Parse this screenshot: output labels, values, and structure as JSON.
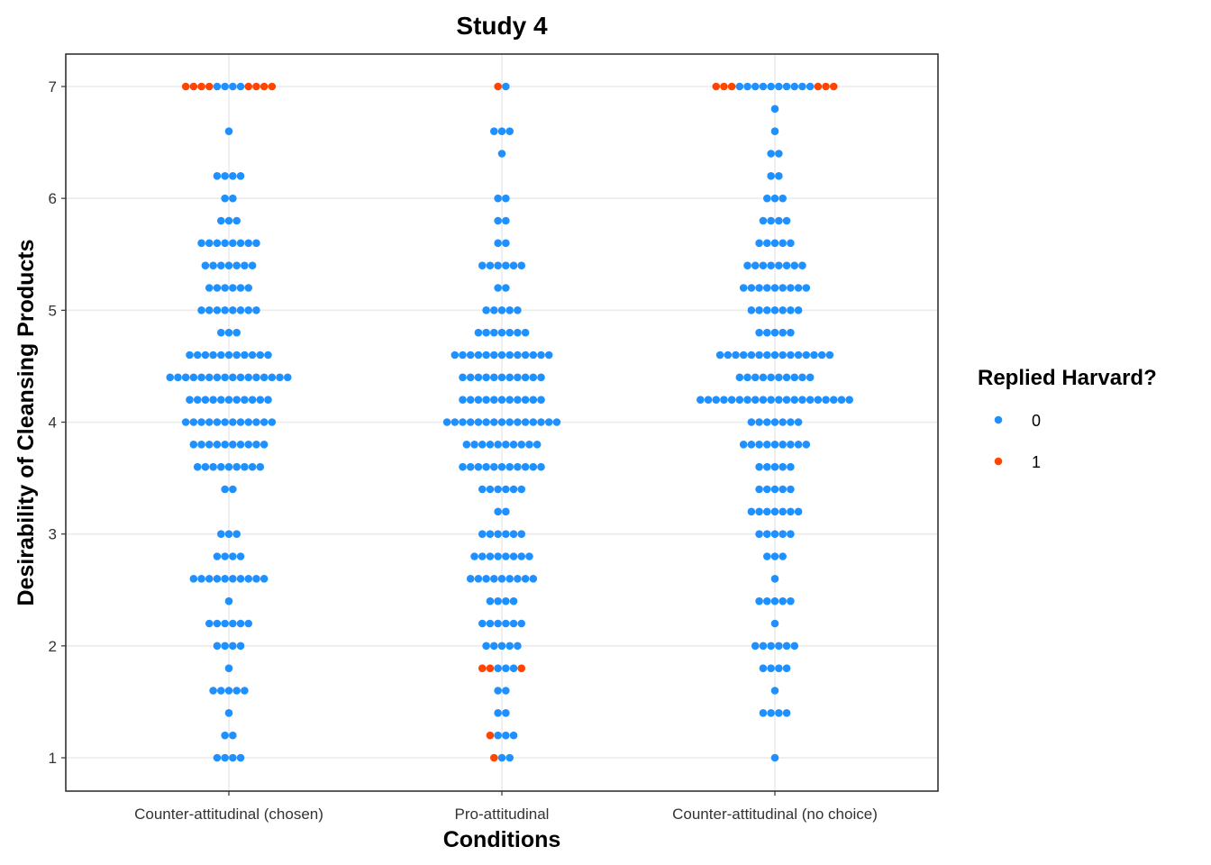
{
  "chart_data": {
    "type": "scatter",
    "subtype": "dotplot",
    "title": "Study 4",
    "xlabel": "Conditions",
    "ylabel": "Desirability of Cleansing Products",
    "categories": [
      "Counter-attitudinal (chosen)",
      "Pro-attitudinal",
      "Counter-attitudinal (no choice)"
    ],
    "ylim": [
      0.7,
      7.3
    ],
    "yticks": [
      1,
      2,
      3,
      4,
      5,
      6,
      7
    ],
    "grid": true,
    "legend": {
      "title": "Replied Harvard?",
      "position": "right",
      "entries": [
        {
          "label": "0",
          "color": "#1e90ff"
        },
        {
          "label": "1",
          "color": "#ff4500"
        }
      ]
    },
    "colors": {
      "0": "#1e90ff",
      "1": "#ff4500"
    },
    "series": [
      {
        "category": "Counter-attitudinal (chosen)",
        "bins": [
          {
            "y": 7.0,
            "counts": {
              "0": 4,
              "1": 8
            }
          },
          {
            "y": 6.6,
            "counts": {
              "0": 1,
              "1": 0
            }
          },
          {
            "y": 6.2,
            "counts": {
              "0": 4,
              "1": 0
            }
          },
          {
            "y": 6.0,
            "counts": {
              "0": 2,
              "1": 0
            }
          },
          {
            "y": 5.8,
            "counts": {
              "0": 3,
              "1": 0
            }
          },
          {
            "y": 5.6,
            "counts": {
              "0": 8,
              "1": 0
            }
          },
          {
            "y": 5.4,
            "counts": {
              "0": 7,
              "1": 0
            }
          },
          {
            "y": 5.2,
            "counts": {
              "0": 6,
              "1": 0
            }
          },
          {
            "y": 5.0,
            "counts": {
              "0": 8,
              "1": 0
            }
          },
          {
            "y": 4.8,
            "counts": {
              "0": 3,
              "1": 0
            }
          },
          {
            "y": 4.6,
            "counts": {
              "0": 11,
              "1": 0
            }
          },
          {
            "y": 4.4,
            "counts": {
              "0": 16,
              "1": 0
            }
          },
          {
            "y": 4.2,
            "counts": {
              "0": 11,
              "1": 0
            }
          },
          {
            "y": 4.0,
            "counts": {
              "0": 12,
              "1": 0
            }
          },
          {
            "y": 3.8,
            "counts": {
              "0": 10,
              "1": 0
            }
          },
          {
            "y": 3.6,
            "counts": {
              "0": 9,
              "1": 0
            }
          },
          {
            "y": 3.4,
            "counts": {
              "0": 2,
              "1": 0
            }
          },
          {
            "y": 3.0,
            "counts": {
              "0": 3,
              "1": 0
            }
          },
          {
            "y": 2.8,
            "counts": {
              "0": 4,
              "1": 0
            }
          },
          {
            "y": 2.6,
            "counts": {
              "0": 10,
              "1": 0
            }
          },
          {
            "y": 2.4,
            "counts": {
              "0": 1,
              "1": 0
            }
          },
          {
            "y": 2.2,
            "counts": {
              "0": 6,
              "1": 0
            }
          },
          {
            "y": 2.0,
            "counts": {
              "0": 4,
              "1": 0
            }
          },
          {
            "y": 1.8,
            "counts": {
              "0": 1,
              "1": 0
            }
          },
          {
            "y": 1.6,
            "counts": {
              "0": 5,
              "1": 0
            }
          },
          {
            "y": 1.4,
            "counts": {
              "0": 1,
              "1": 0
            }
          },
          {
            "y": 1.2,
            "counts": {
              "0": 2,
              "1": 0
            }
          },
          {
            "y": 1.0,
            "counts": {
              "0": 4,
              "1": 0
            }
          }
        ]
      },
      {
        "category": "Pro-attitudinal",
        "bins": [
          {
            "y": 7.0,
            "counts": {
              "0": 1,
              "1": 1
            }
          },
          {
            "y": 6.6,
            "counts": {
              "0": 3,
              "1": 0
            }
          },
          {
            "y": 6.4,
            "counts": {
              "0": 1,
              "1": 0
            }
          },
          {
            "y": 6.0,
            "counts": {
              "0": 2,
              "1": 0
            }
          },
          {
            "y": 5.8,
            "counts": {
              "0": 2,
              "1": 0
            }
          },
          {
            "y": 5.6,
            "counts": {
              "0": 2,
              "1": 0
            }
          },
          {
            "y": 5.4,
            "counts": {
              "0": 6,
              "1": 0
            }
          },
          {
            "y": 5.2,
            "counts": {
              "0": 2,
              "1": 0
            }
          },
          {
            "y": 5.0,
            "counts": {
              "0": 5,
              "1": 0
            }
          },
          {
            "y": 4.8,
            "counts": {
              "0": 7,
              "1": 0
            }
          },
          {
            "y": 4.6,
            "counts": {
              "0": 13,
              "1": 0
            }
          },
          {
            "y": 4.4,
            "counts": {
              "0": 11,
              "1": 0
            }
          },
          {
            "y": 4.2,
            "counts": {
              "0": 11,
              "1": 0
            }
          },
          {
            "y": 4.0,
            "counts": {
              "0": 15,
              "1": 0
            }
          },
          {
            "y": 3.8,
            "counts": {
              "0": 10,
              "1": 0
            }
          },
          {
            "y": 3.6,
            "counts": {
              "0": 11,
              "1": 0
            }
          },
          {
            "y": 3.4,
            "counts": {
              "0": 6,
              "1": 0
            }
          },
          {
            "y": 3.2,
            "counts": {
              "0": 2,
              "1": 0
            }
          },
          {
            "y": 3.0,
            "counts": {
              "0": 6,
              "1": 0
            }
          },
          {
            "y": 2.8,
            "counts": {
              "0": 8,
              "1": 0
            }
          },
          {
            "y": 2.6,
            "counts": {
              "0": 9,
              "1": 0
            }
          },
          {
            "y": 2.4,
            "counts": {
              "0": 4,
              "1": 0
            }
          },
          {
            "y": 2.2,
            "counts": {
              "0": 6,
              "1": 0
            }
          },
          {
            "y": 2.0,
            "counts": {
              "0": 5,
              "1": 0
            }
          },
          {
            "y": 1.8,
            "counts": {
              "0": 3,
              "1": 3
            }
          },
          {
            "y": 1.6,
            "counts": {
              "0": 2,
              "1": 0
            }
          },
          {
            "y": 1.4,
            "counts": {
              "0": 2,
              "1": 0
            }
          },
          {
            "y": 1.2,
            "counts": {
              "0": 3,
              "1": 1
            }
          },
          {
            "y": 1.0,
            "counts": {
              "0": 2,
              "1": 1
            }
          }
        ]
      },
      {
        "category": "Counter-attitudinal (no choice)",
        "bins": [
          {
            "y": 7.0,
            "counts": {
              "0": 10,
              "1": 6
            }
          },
          {
            "y": 6.8,
            "counts": {
              "0": 1,
              "1": 0
            }
          },
          {
            "y": 6.6,
            "counts": {
              "0": 1,
              "1": 0
            }
          },
          {
            "y": 6.4,
            "counts": {
              "0": 2,
              "1": 0
            }
          },
          {
            "y": 6.2,
            "counts": {
              "0": 2,
              "1": 0
            }
          },
          {
            "y": 6.0,
            "counts": {
              "0": 3,
              "1": 0
            }
          },
          {
            "y": 5.8,
            "counts": {
              "0": 4,
              "1": 0
            }
          },
          {
            "y": 5.6,
            "counts": {
              "0": 5,
              "1": 0
            }
          },
          {
            "y": 5.4,
            "counts": {
              "0": 8,
              "1": 0
            }
          },
          {
            "y": 5.2,
            "counts": {
              "0": 9,
              "1": 0
            }
          },
          {
            "y": 5.0,
            "counts": {
              "0": 7,
              "1": 0
            }
          },
          {
            "y": 4.8,
            "counts": {
              "0": 5,
              "1": 0
            }
          },
          {
            "y": 4.6,
            "counts": {
              "0": 15,
              "1": 0
            }
          },
          {
            "y": 4.4,
            "counts": {
              "0": 10,
              "1": 0
            }
          },
          {
            "y": 4.2,
            "counts": {
              "0": 20,
              "1": 0
            }
          },
          {
            "y": 4.0,
            "counts": {
              "0": 7,
              "1": 0
            }
          },
          {
            "y": 3.8,
            "counts": {
              "0": 9,
              "1": 0
            }
          },
          {
            "y": 3.6,
            "counts": {
              "0": 5,
              "1": 0
            }
          },
          {
            "y": 3.4,
            "counts": {
              "0": 5,
              "1": 0
            }
          },
          {
            "y": 3.2,
            "counts": {
              "0": 7,
              "1": 0
            }
          },
          {
            "y": 3.0,
            "counts": {
              "0": 5,
              "1": 0
            }
          },
          {
            "y": 2.8,
            "counts": {
              "0": 3,
              "1": 0
            }
          },
          {
            "y": 2.6,
            "counts": {
              "0": 1,
              "1": 0
            }
          },
          {
            "y": 2.4,
            "counts": {
              "0": 5,
              "1": 0
            }
          },
          {
            "y": 2.2,
            "counts": {
              "0": 1,
              "1": 0
            }
          },
          {
            "y": 2.0,
            "counts": {
              "0": 6,
              "1": 0
            }
          },
          {
            "y": 1.8,
            "counts": {
              "0": 4,
              "1": 0
            }
          },
          {
            "y": 1.6,
            "counts": {
              "0": 1,
              "1": 0
            }
          },
          {
            "y": 1.4,
            "counts": {
              "0": 4,
              "1": 0
            }
          },
          {
            "y": 1.0,
            "counts": {
              "0": 1,
              "1": 0
            }
          }
        ]
      }
    ]
  }
}
